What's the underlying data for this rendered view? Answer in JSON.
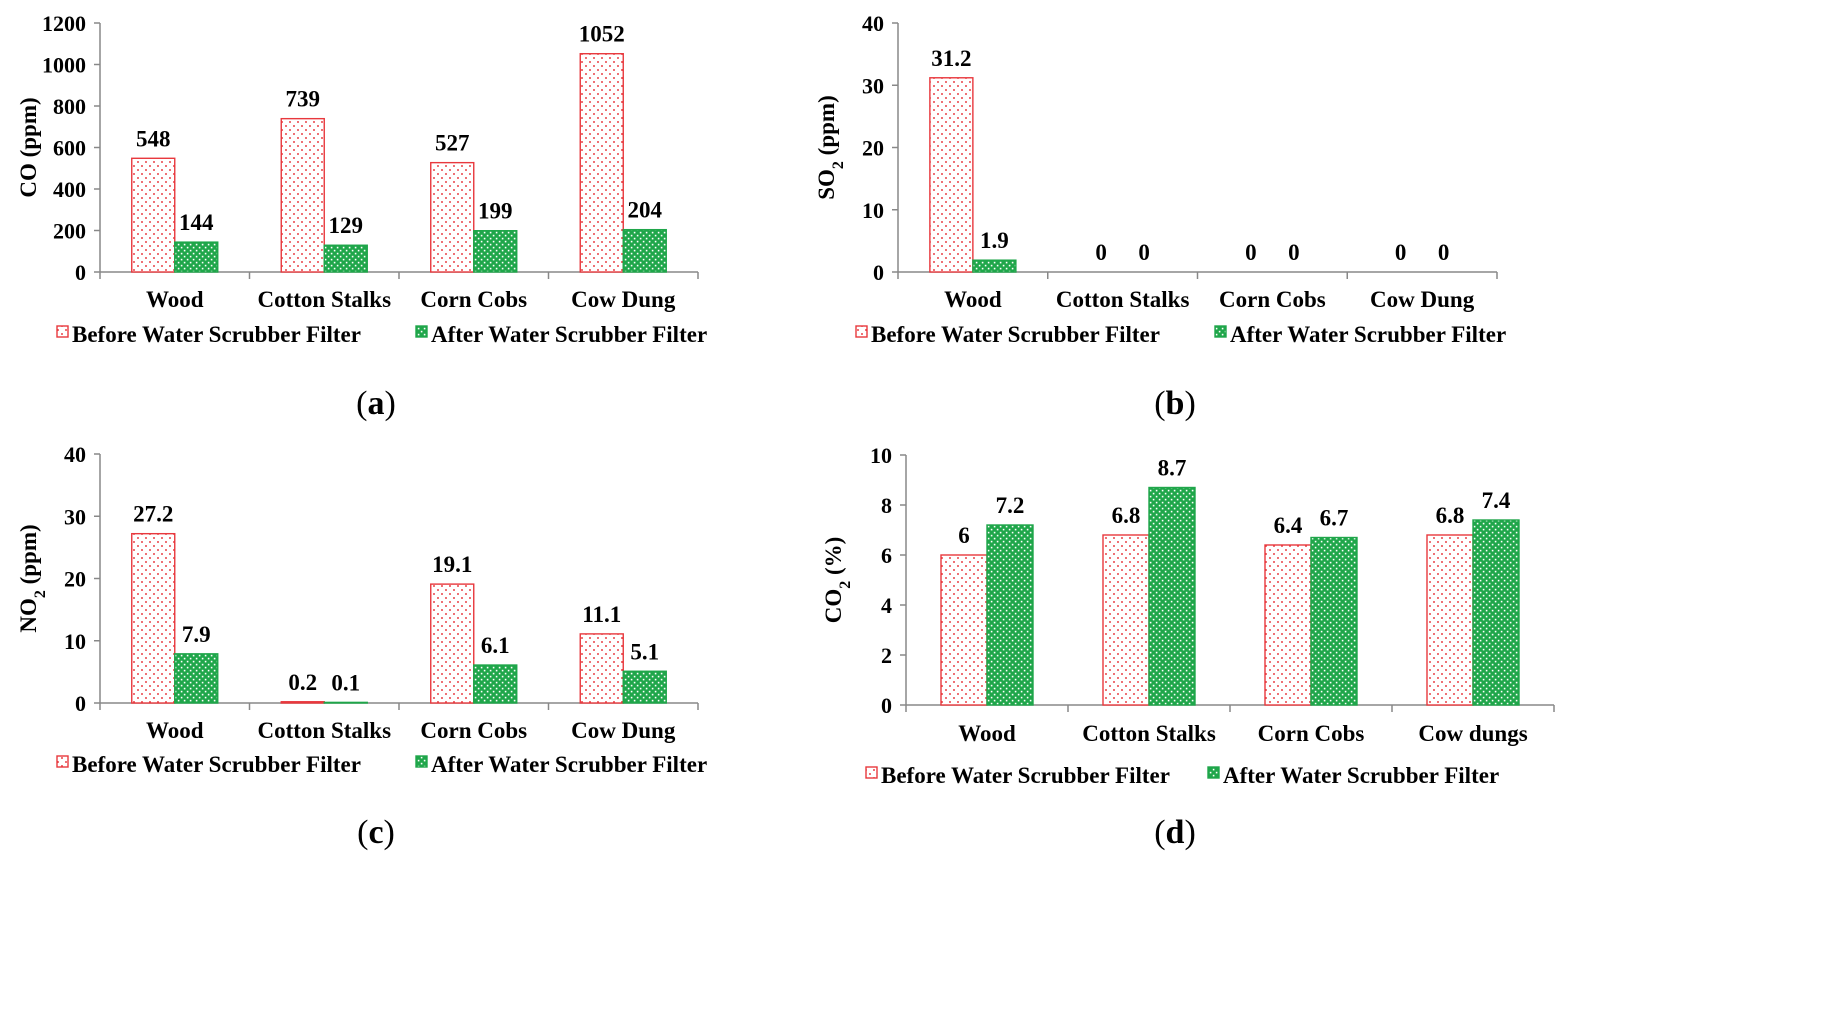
{
  "legend": {
    "before": "Before Water Scrubber Filter",
    "after": "After Water Scrubber Filter"
  },
  "colors": {
    "before": "#e8383d",
    "after": "#1fa64a"
  },
  "chart_data": [
    {
      "id": "a",
      "caption": "a",
      "type": "bar",
      "ylabel_main": "CO (ppm)",
      "ylabel_sub": "",
      "ylabel_post": "",
      "ylim": [
        0,
        1200
      ],
      "yticks": [
        0,
        200,
        400,
        600,
        800,
        1000,
        1200
      ],
      "categories": [
        "Wood",
        "Cotton Stalks",
        "Corn Cobs",
        "Cow Dung"
      ],
      "series": [
        {
          "name": "Before Water Scrubber Filter",
          "values": [
            548,
            739,
            527,
            1052
          ],
          "labels": [
            "548",
            "739",
            "527",
            "1052"
          ]
        },
        {
          "name": "After Water Scrubber Filter",
          "values": [
            144,
            129,
            199,
            204
          ],
          "labels": [
            "144",
            "129",
            "199",
            "204"
          ]
        }
      ]
    },
    {
      "id": "b",
      "caption": "b",
      "type": "bar",
      "ylabel_main": "SO",
      "ylabel_sub": "2",
      "ylabel_post": " (ppm)",
      "ylim": [
        0,
        40
      ],
      "yticks": [
        0,
        10,
        20,
        30,
        40
      ],
      "categories": [
        "Wood",
        "Cotton Stalks",
        "Corn Cobs",
        "Cow Dung"
      ],
      "series": [
        {
          "name": "Before Water Scrubber Filter",
          "values": [
            31.2,
            0,
            0,
            0
          ],
          "labels": [
            "31.2",
            "0",
            "0",
            "0"
          ]
        },
        {
          "name": "After Water Scrubber Filter",
          "values": [
            1.9,
            0,
            0,
            0
          ],
          "labels": [
            "1.9",
            "0",
            "0",
            "0"
          ]
        }
      ]
    },
    {
      "id": "c",
      "caption": "c",
      "type": "bar",
      "ylabel_main": "NO",
      "ylabel_sub": "2",
      "ylabel_post": " (ppm)",
      "ylim": [
        0,
        40
      ],
      "yticks": [
        0,
        10,
        20,
        30,
        40
      ],
      "categories": [
        "Wood",
        "Cotton Stalks",
        "Corn Cobs",
        "Cow Dung"
      ],
      "series": [
        {
          "name": "Before Water Scrubber Filter",
          "values": [
            27.2,
            0.2,
            19.1,
            11.1
          ],
          "labels": [
            "27.2",
            "0.2",
            "19.1",
            "11.1"
          ]
        },
        {
          "name": "After Water Scrubber Filter",
          "values": [
            7.9,
            0.1,
            6.1,
            5.1
          ],
          "labels": [
            "7.9",
            "0.1",
            "6.1",
            "5.1"
          ]
        }
      ]
    },
    {
      "id": "d",
      "caption": "d",
      "type": "bar",
      "ylabel_main": "CO",
      "ylabel_sub": "2",
      "ylabel_post": " (%)",
      "ylim": [
        0,
        10
      ],
      "yticks": [
        0,
        2,
        4,
        6,
        8,
        10
      ],
      "categories": [
        "Wood",
        "Cotton Stalks",
        "Corn Cobs",
        "Cow dungs"
      ],
      "series": [
        {
          "name": "Before Water Scrubber Filter",
          "values": [
            6,
            6.8,
            6.4,
            6.8
          ],
          "labels": [
            "6",
            "6.8",
            "6.4",
            "6.8"
          ]
        },
        {
          "name": "After Water Scrubber Filter",
          "values": [
            7.2,
            8.7,
            6.7,
            7.4
          ],
          "labels": [
            "7.2",
            "8.7",
            "6.7",
            "7.4"
          ]
        }
      ]
    }
  ]
}
